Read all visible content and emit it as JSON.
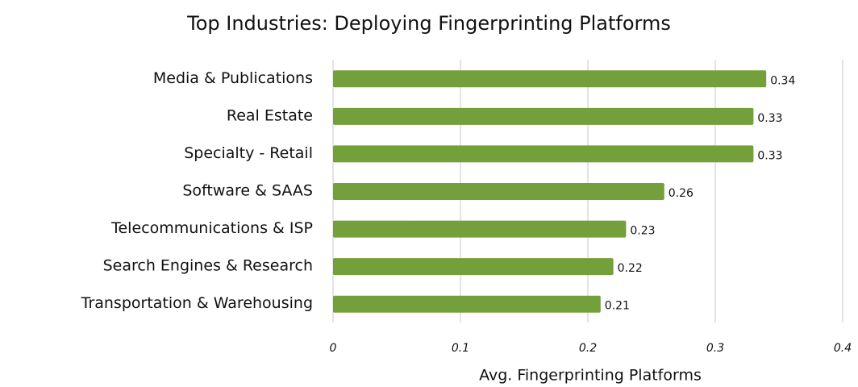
{
  "chart_data": {
    "type": "bar",
    "orientation": "horizontal",
    "title": "Top Industries: Deploying Fingerprinting Platforms",
    "x_label": "Avg. Fingerprinting Platforms",
    "categories": [
      "Media & Publications",
      "Real Estate",
      "Specialty - Retail",
      "Software & SAAS",
      "Telecommunications & ISP",
      "Search Engines & Research",
      "Transportation & Warehousing"
    ],
    "values": [
      0.34,
      0.33,
      0.33,
      0.26,
      0.23,
      0.22,
      0.21
    ],
    "color": "#73a03a",
    "xlim": [
      0,
      0.4
    ],
    "xticks": [
      0,
      0.1,
      0.2,
      0.3,
      0.4
    ],
    "grid": true
  }
}
